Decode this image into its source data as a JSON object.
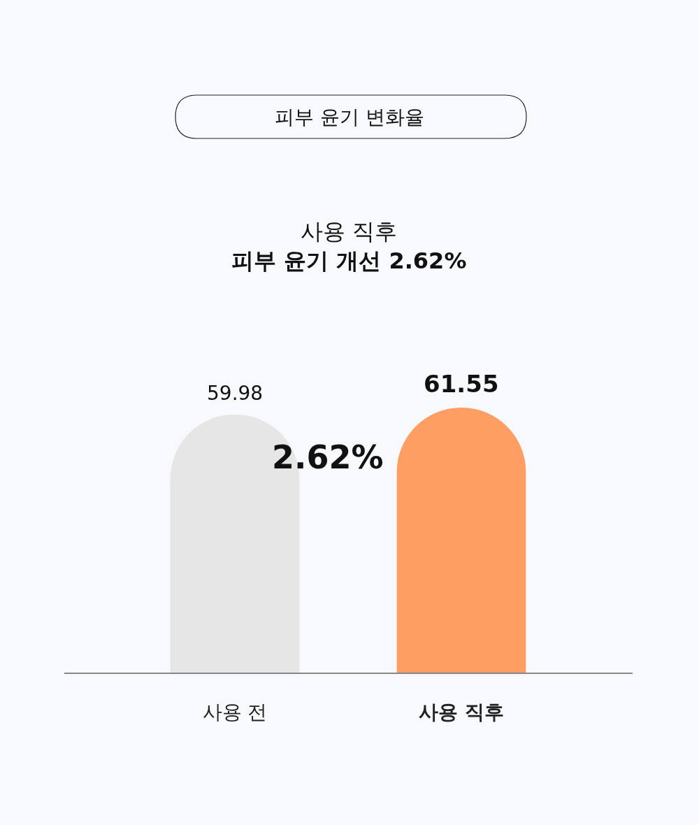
{
  "chart_data": {
    "type": "bar",
    "title": "피부 윤기 변화율",
    "subtitle": "사용 직후\n피부 윤기 개선 2.62%",
    "categories": [
      "사용 전",
      "사용 직후"
    ],
    "values": [
      59.98,
      61.55
    ],
    "colors": [
      "#e6e6e6",
      "#fe9e62"
    ],
    "data_labels": true,
    "annotations": [
      "2.62%"
    ]
  }
}
